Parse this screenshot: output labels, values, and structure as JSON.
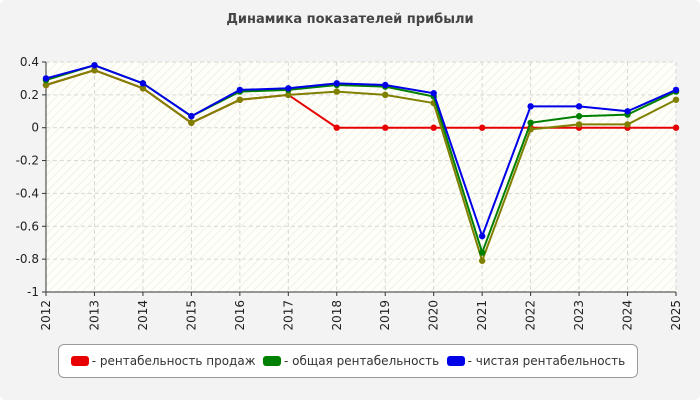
{
  "chart_data": {
    "type": "line",
    "title": "Динамика показателей прибыли",
    "xlabel": "",
    "ylabel": "",
    "x": [
      "2012",
      "2013",
      "2014",
      "2015",
      "2016",
      "2017",
      "2018",
      "2019",
      "2020",
      "2021",
      "2022",
      "2023",
      "2024",
      "2025"
    ],
    "ylim": [
      -1,
      0.4
    ],
    "yticks": [
      0.4,
      0.2,
      0,
      -0.2,
      -0.4,
      -0.6,
      -0.8,
      -1
    ],
    "ytick_labels": [
      "0.4",
      "0.2",
      "0",
      "-0.2",
      "-0.4",
      "-0.6",
      "-0.8",
      "-1"
    ],
    "grid": true,
    "legend_position": "bottom",
    "series": [
      {
        "name": "- рентабельность продаж",
        "color": "#e80000",
        "values": [
          0.26,
          0.35,
          0.24,
          0.03,
          0.17,
          0.2,
          0.0,
          0.0,
          0.0,
          0.0,
          0.0,
          0.0,
          0.0,
          0.0
        ]
      },
      {
        "name": "- общая рентабельность",
        "color": "#008000",
        "values": [
          0.29,
          0.38,
          0.27,
          0.07,
          0.22,
          0.23,
          0.26,
          0.25,
          0.19,
          -0.76,
          0.03,
          0.07,
          0.08,
          0.22
        ]
      },
      {
        "name": "- чистая рентабельность",
        "color": "#0000e8",
        "values": [
          0.3,
          0.38,
          0.27,
          0.07,
          0.23,
          0.24,
          0.27,
          0.26,
          0.21,
          -0.66,
          0.13,
          0.13,
          0.1,
          0.23
        ]
      },
      {
        "name": "",
        "color": "#808000",
        "values": [
          0.26,
          0.35,
          0.24,
          0.03,
          0.17,
          0.2,
          0.22,
          0.2,
          0.15,
          -0.81,
          -0.01,
          0.02,
          0.02,
          0.17
        ]
      }
    ]
  }
}
